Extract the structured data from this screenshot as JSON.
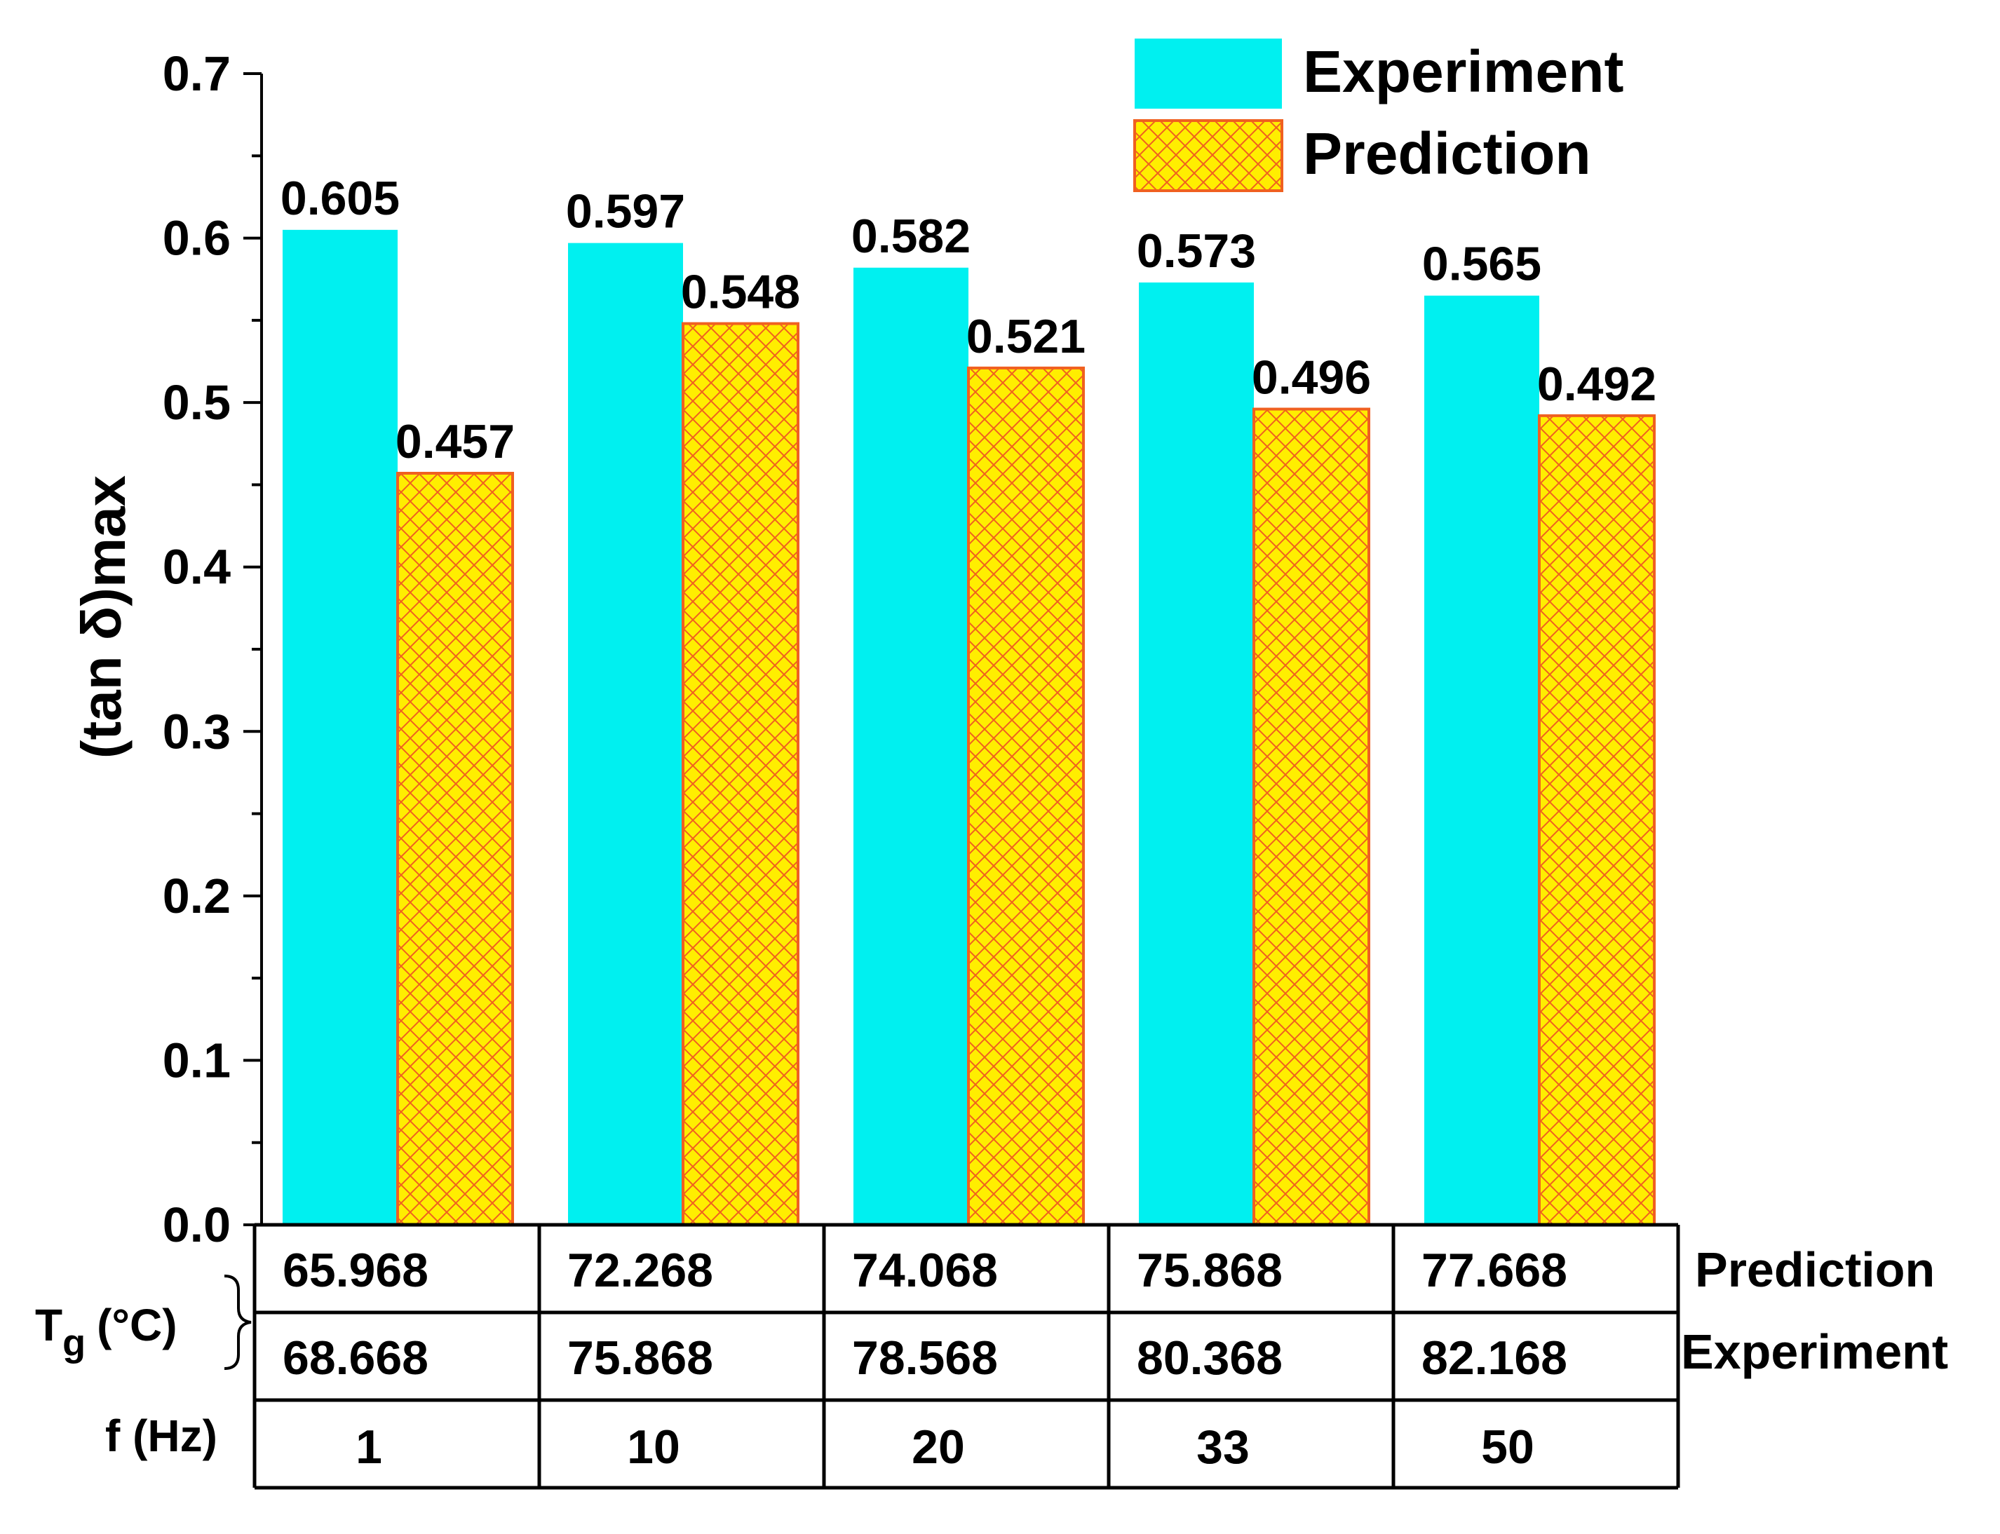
{
  "chart_data": {
    "type": "bar",
    "ylabel_main": "(tan δ)",
    "ylabel_sub": "max",
    "ylim": [
      0,
      0.7
    ],
    "yticks": [
      "0.0",
      "0.1",
      "0.2",
      "0.3",
      "0.4",
      "0.5",
      "0.6",
      "0.7"
    ],
    "categories": [
      "1",
      "10",
      "20",
      "33",
      "50"
    ],
    "series": [
      {
        "name": "Experiment",
        "color": "#00f0f0",
        "values": [
          0.605,
          0.597,
          0.582,
          0.573,
          0.565
        ],
        "labels": [
          "0.605",
          "0.597",
          "0.582",
          "0.573",
          "0.565"
        ]
      },
      {
        "name": "Prediction",
        "color": "#ffee00",
        "hatch_color": "#f06020",
        "values": [
          0.457,
          0.548,
          0.521,
          0.496,
          0.492
        ],
        "labels": [
          "0.457",
          "0.548",
          "0.521",
          "0.496",
          "0.492"
        ]
      }
    ],
    "table": {
      "tg_label_main": "T",
      "tg_label_sub": "g",
      "tg_label_unit": "(°C)",
      "f_label": "f (Hz)",
      "rows": [
        {
          "name": "Prediction",
          "values": [
            "65.968",
            "72.268",
            "74.068",
            "75.868",
            "77.668"
          ]
        },
        {
          "name": "Experiment",
          "values": [
            "68.668",
            "75.868",
            "78.568",
            "80.368",
            "82.168"
          ]
        }
      ]
    }
  }
}
